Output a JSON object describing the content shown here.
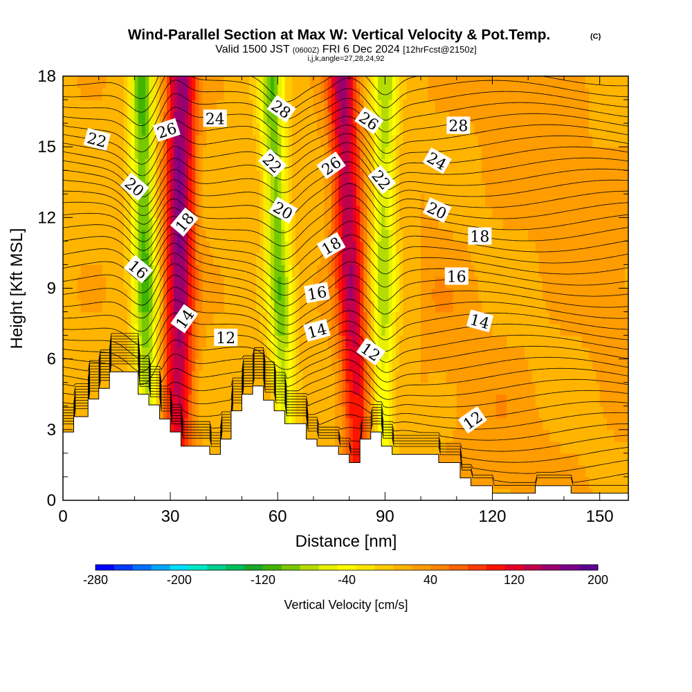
{
  "header": {
    "title": "Wind-Parallel Section at Max W: Vertical Velocity & Pot.Temp.",
    "copyright": "(C)",
    "valid_prefix": "Valid 1500 JST",
    "valid_zulu": "(0600Z)",
    "valid_date": "FRI 6 Dec 2024",
    "forecast_info": "[12hrFcst@2150z]",
    "indices": "i,j,k,angle=27,28,24,92"
  },
  "chart_data": {
    "type": "heatmap",
    "xlabel": "Distance [nm]",
    "ylabel": "Height [Kft MSL]",
    "xlim": [
      0,
      158
    ],
    "ylim": [
      0,
      18
    ],
    "x_ticks": [
      0,
      30,
      60,
      90,
      120,
      150
    ],
    "y_ticks": [
      0,
      3,
      6,
      9,
      12,
      15,
      18
    ],
    "colorbar": {
      "label": "Vertical Velocity [cm/s]",
      "ticks": [
        -280,
        -200,
        -120,
        -40,
        40,
        120,
        200
      ],
      "range": [
        -280,
        200
      ],
      "colors": [
        "#0000ff",
        "#0038ff",
        "#0070ff",
        "#00a6ff",
        "#00dcff",
        "#00e6c8",
        "#00d090",
        "#00be5a",
        "#1ca82a",
        "#40b400",
        "#78c800",
        "#b4dc00",
        "#e6f000",
        "#ffff00",
        "#ffe600",
        "#ffcc00",
        "#ffb400",
        "#ff9c00",
        "#ff8400",
        "#ff6400",
        "#ff3c00",
        "#ff1400",
        "#e60026",
        "#c0004a",
        "#9a006e",
        "#7a008c",
        "#5c0092"
      ]
    },
    "updraft_bands": [
      {
        "x_bottom": 32,
        "x_top": 33,
        "w": 150
      },
      {
        "x_bottom": 83,
        "x_top": 78,
        "w": 130
      }
    ],
    "downdraft_bands": [
      {
        "x_bottom": 24,
        "x_top": 22,
        "w": -120
      },
      {
        "x_bottom": 63,
        "x_top": 58,
        "w": -110
      },
      {
        "x_bottom": 89,
        "x_top": 90,
        "w": -90
      }
    ],
    "terrain_heights": [
      [
        0,
        2.9
      ],
      [
        3,
        3.55
      ],
      [
        7,
        4.3
      ],
      [
        10,
        4.75
      ],
      [
        13,
        5.45
      ],
      [
        21,
        4.5
      ],
      [
        24,
        4.05
      ],
      [
        27,
        3.45
      ],
      [
        30,
        2.9
      ],
      [
        33,
        2.3
      ],
      [
        37,
        2.3
      ],
      [
        41,
        1.95
      ],
      [
        44,
        2.6
      ],
      [
        47,
        3.8
      ],
      [
        50,
        4.5
      ],
      [
        53,
        4.85
      ],
      [
        56,
        4.25
      ],
      [
        59,
        3.8
      ],
      [
        62,
        3.25
      ],
      [
        65,
        3.25
      ],
      [
        68,
        2.6
      ],
      [
        71,
        2.3
      ],
      [
        74,
        2.3
      ],
      [
        77,
        1.95
      ],
      [
        80,
        1.6
      ],
      [
        83,
        2.6
      ],
      [
        86,
        2.9
      ],
      [
        89,
        2.3
      ],
      [
        92,
        1.95
      ],
      [
        95,
        1.95
      ],
      [
        99,
        1.95
      ],
      [
        102,
        1.95
      ],
      [
        105,
        1.6
      ],
      [
        108,
        1.6
      ],
      [
        111,
        0.95
      ],
      [
        114,
        0.62
      ],
      [
        117,
        0.62
      ],
      [
        120,
        0.3
      ],
      [
        125,
        0.3
      ],
      [
        132,
        0.62
      ],
      [
        139,
        0.62
      ],
      [
        142,
        0.3
      ],
      [
        158,
        0.3
      ]
    ],
    "isentrope_labels": [
      {
        "text": "22",
        "x": 9.5,
        "y": 15.3,
        "angle": 15
      },
      {
        "text": "26",
        "x": 29,
        "y": 15.7,
        "angle": -18
      },
      {
        "text": "24",
        "x": 42.5,
        "y": 16.2,
        "angle": 0
      },
      {
        "text": "28",
        "x": 61,
        "y": 16.6,
        "angle": 35
      },
      {
        "text": "26",
        "x": 85.5,
        "y": 16.1,
        "angle": 35
      },
      {
        "text": "28",
        "x": 110.5,
        "y": 15.9,
        "angle": 0
      },
      {
        "text": "22",
        "x": 58.5,
        "y": 14.3,
        "angle": 45
      },
      {
        "text": "26",
        "x": 75,
        "y": 14.2,
        "angle": -35
      },
      {
        "text": "22",
        "x": 89,
        "y": 13.6,
        "angle": 50
      },
      {
        "text": "24",
        "x": 104.5,
        "y": 14.4,
        "angle": 30
      },
      {
        "text": "20",
        "x": 20,
        "y": 13.3,
        "angle": 40
      },
      {
        "text": "20",
        "x": 61.5,
        "y": 12.3,
        "angle": 30
      },
      {
        "text": "20",
        "x": 104.5,
        "y": 12.3,
        "angle": 25
      },
      {
        "text": "18",
        "x": 34,
        "y": 11.8,
        "angle": -50
      },
      {
        "text": "18",
        "x": 116.5,
        "y": 11.2,
        "angle": 0
      },
      {
        "text": "18",
        "x": 75,
        "y": 10.8,
        "angle": -30
      },
      {
        "text": "16",
        "x": 21,
        "y": 9.8,
        "angle": 40
      },
      {
        "text": "16",
        "x": 110,
        "y": 9.5,
        "angle": 0
      },
      {
        "text": "16",
        "x": 71,
        "y": 8.8,
        "angle": -10
      },
      {
        "text": "14",
        "x": 34,
        "y": 7.7,
        "angle": -55
      },
      {
        "text": "14",
        "x": 116.5,
        "y": 7.6,
        "angle": 15
      },
      {
        "text": "14",
        "x": 71,
        "y": 7.2,
        "angle": -15
      },
      {
        "text": "12",
        "x": 45.5,
        "y": 6.9,
        "angle": 0
      },
      {
        "text": "12",
        "x": 86,
        "y": 6.3,
        "angle": 35
      },
      {
        "text": "12",
        "x": 114.5,
        "y": 3.4,
        "angle": -35
      }
    ]
  }
}
